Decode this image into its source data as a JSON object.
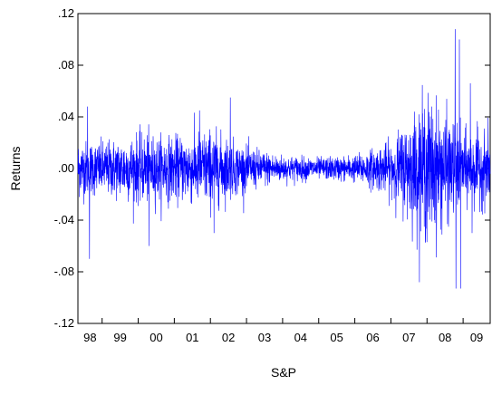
{
  "chart_data": {
    "type": "line",
    "title": "",
    "xlabel": "S&P",
    "ylabel": "Returns",
    "ylim": [
      -0.12,
      0.12
    ],
    "yticks": [
      ".12",
      ".08",
      ".04",
      ".00",
      "-.04",
      "-.08",
      "-.12"
    ],
    "yticks_values": [
      0.12,
      0.08,
      0.04,
      0.0,
      -0.04,
      -0.08,
      -0.12
    ],
    "x_categories": [
      "98",
      "99",
      "00",
      "01",
      "02",
      "03",
      "04",
      "05",
      "06",
      "07",
      "08",
      "09"
    ],
    "x_range": [
      1998.33,
      2009.75
    ],
    "grid": false,
    "series": [
      {
        "color": "#0000ff",
        "description_of_volatility": [
          {
            "year": 1998,
            "amplitude": 0.025
          },
          {
            "year": 1999,
            "amplitude": 0.022
          },
          {
            "year": 2000,
            "amplitude": 0.028
          },
          {
            "year": 2001,
            "amplitude": 0.026
          },
          {
            "year": 2002,
            "amplitude": 0.032
          },
          {
            "year": 2003,
            "amplitude": 0.018
          },
          {
            "year": 2004,
            "amplitude": 0.011
          },
          {
            "year": 2005,
            "amplitude": 0.009
          },
          {
            "year": 2006,
            "amplitude": 0.011
          },
          {
            "year": 2007,
            "amplitude": 0.022
          },
          {
            "year": 2008,
            "amplitude": 0.06
          },
          {
            "year": 2009,
            "amplitude": 0.03
          }
        ],
        "extremes": [
          {
            "x": 1998.6,
            "y": 0.048
          },
          {
            "x": 1998.65,
            "y": -0.07
          },
          {
            "x": 2000.3,
            "y": -0.06
          },
          {
            "x": 2001.7,
            "y": 0.045
          },
          {
            "x": 2002.1,
            "y": -0.05
          },
          {
            "x": 2002.55,
            "y": 0.055
          },
          {
            "x": 2008.78,
            "y": 0.108
          },
          {
            "x": 2008.8,
            "y": -0.093
          },
          {
            "x": 2008.9,
            "y": 0.1
          },
          {
            "x": 2008.93,
            "y": -0.093
          },
          {
            "x": 2009.2,
            "y": 0.066
          },
          {
            "x": 2009.25,
            "y": -0.05
          }
        ]
      }
    ]
  }
}
